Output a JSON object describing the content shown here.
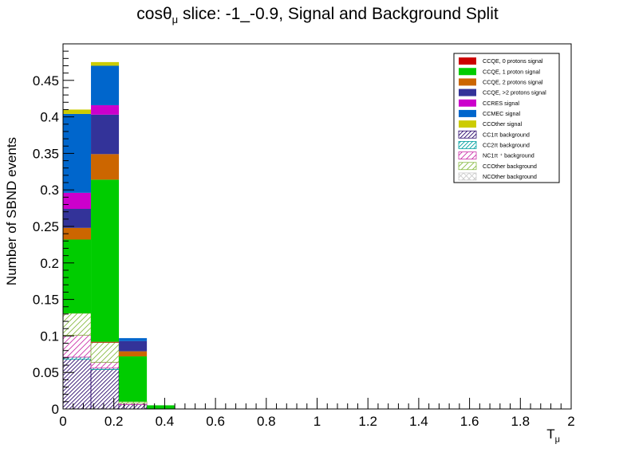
{
  "chart_data": {
    "type": "bar",
    "stacked": true,
    "title_main": "cosθ",
    "title_sub": "μ",
    "title_rest": " slice: -1_-0.9, Signal and Background Split",
    "xlabel_main": "T",
    "xlabel_sub": "μ",
    "ylabel": "Number of SBND events",
    "xlim": [
      0,
      2
    ],
    "ylim": [
      0,
      0.5
    ],
    "bin_edges": [
      0,
      0.11,
      0.22,
      0.33,
      0.44
    ],
    "xticks": [
      0,
      0.2,
      0.4,
      0.6,
      0.8,
      1,
      1.2,
      1.4,
      1.6,
      1.8,
      2
    ],
    "xtick_labels": [
      "0",
      "0.2",
      "0.4",
      "0.6",
      "0.8",
      "1",
      "1.2",
      "1.4",
      "1.6",
      "1.8",
      "2"
    ],
    "yticks": [
      0,
      0.05,
      0.1,
      0.15,
      0.2,
      0.25,
      0.3,
      0.35,
      0.4,
      0.45
    ],
    "ytick_labels": [
      "0",
      "0.05",
      "0.1",
      "0.15",
      "0.2",
      "0.25",
      "0.3",
      "0.35",
      "0.4",
      "0.45"
    ],
    "legend_position": "top-right",
    "series": [
      {
        "name": "NCOther background",
        "color": "#cccccc",
        "hatch": "xhatch",
        "values": [
          0.0,
          0.0,
          0.0,
          0.0
        ]
      },
      {
        "name": "CC1π background",
        "color": "#2d0a6e",
        "hatch": "dense",
        "values": [
          0.068,
          0.054,
          0.006,
          0.0
        ]
      },
      {
        "name": "CC2π background",
        "color": "#00a0a0",
        "hatch": "dense",
        "values": [
          0.003,
          0.002,
          0.0,
          0.0
        ]
      },
      {
        "name": "NC1π background",
        "color": "#cc33aa",
        "hatch": "sparse",
        "values": [
          0.03,
          0.008,
          0.002,
          0.0
        ]
      },
      {
        "name": "CCOther background",
        "color": "#88bb44",
        "hatch": "sparse",
        "values": [
          0.03,
          0.027,
          0.002,
          0.0
        ]
      },
      {
        "name": "CCQE, 0 protons signal",
        "color": "#cc0000",
        "hatch": "none",
        "values": [
          0.0,
          0.001,
          0.0,
          0.0
        ]
      },
      {
        "name": "CCQE, 1 proton signal",
        "color": "#00cc00",
        "hatch": "none",
        "values": [
          0.101,
          0.222,
          0.062,
          0.005
        ]
      },
      {
        "name": "CCQE, 2 protons signal",
        "color": "#cc6600",
        "hatch": "none",
        "values": [
          0.016,
          0.035,
          0.007,
          0.0
        ]
      },
      {
        "name": "CCQE, >2 protons signal",
        "color": "#333399",
        "hatch": "none",
        "values": [
          0.026,
          0.054,
          0.014,
          0.0
        ]
      },
      {
        "name": "CCRES signal",
        "color": "#cc00cc",
        "hatch": "none",
        "values": [
          0.022,
          0.013,
          0.0,
          0.0
        ]
      },
      {
        "name": "CCMEC signal",
        "color": "#0066cc",
        "hatch": "none",
        "values": [
          0.108,
          0.054,
          0.004,
          0.0
        ]
      },
      {
        "name": "CCOther signal",
        "color": "#cccc00",
        "hatch": "none",
        "values": [
          0.006,
          0.005,
          0.0,
          0.0
        ]
      }
    ],
    "legend": [
      {
        "label": "CCQE, 0 protons signal",
        "color": "#cc0000",
        "hatch": "none"
      },
      {
        "label": "CCQE, 1 proton signal",
        "color": "#00cc00",
        "hatch": "none"
      },
      {
        "label": "CCQE, 2 protons signal",
        "color": "#cc6600",
        "hatch": "none"
      },
      {
        "label": "CCQE, >2 protons signal",
        "color": "#333399",
        "hatch": "none"
      },
      {
        "label": "CCRES signal",
        "color": "#cc00cc",
        "hatch": "none"
      },
      {
        "label": "CCMEC signal",
        "color": "#0066cc",
        "hatch": "none"
      },
      {
        "label": "CCOther signal",
        "color": "#cccc00",
        "hatch": "none"
      },
      {
        "label": "CC1π background",
        "color": "#2d0a6e",
        "hatch": "dense"
      },
      {
        "label": "CC2π background",
        "color": "#00a0a0",
        "hatch": "dense"
      },
      {
        "label": "NC1π ⁺  background",
        "color": "#cc33aa",
        "hatch": "sparse"
      },
      {
        "label": "CCOther background",
        "color": "#88bb44",
        "hatch": "sparse"
      },
      {
        "label": "NCOther background",
        "color": "#cccccc",
        "hatch": "xhatch"
      }
    ]
  }
}
